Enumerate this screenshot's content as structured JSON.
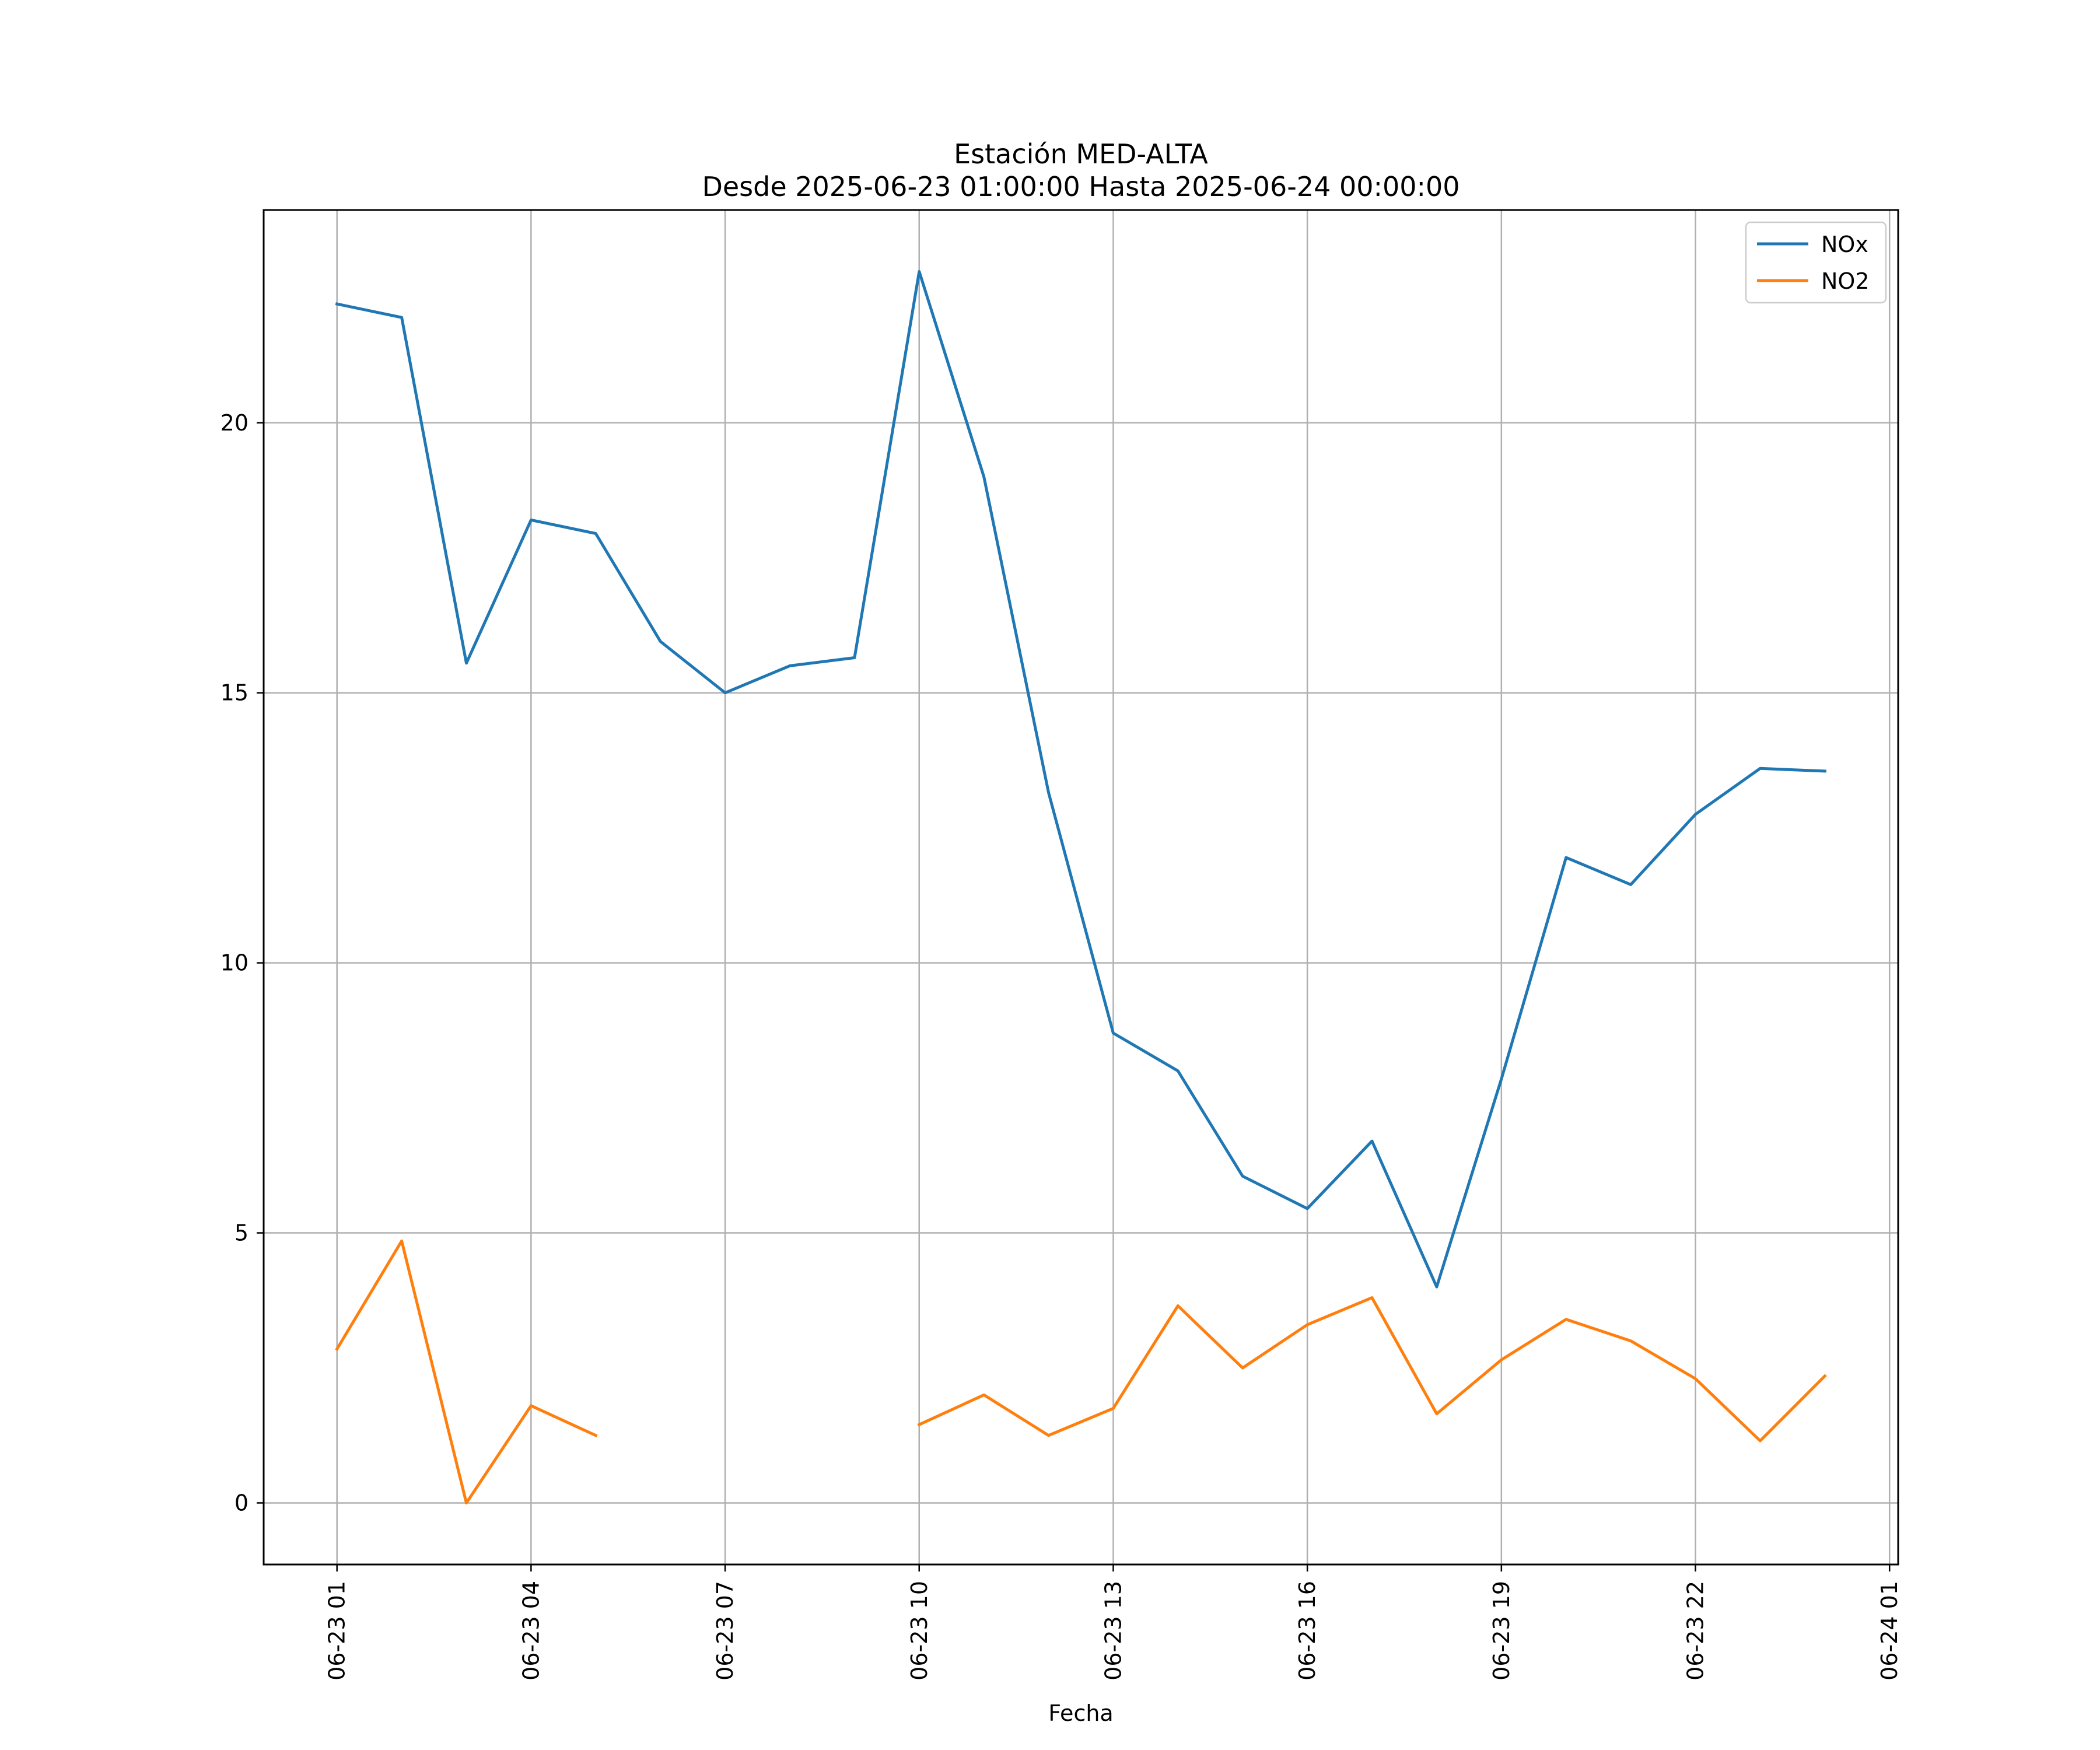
{
  "chart_data": {
    "type": "line",
    "title": "Estación MED-ALTA",
    "subtitle": "Desde 2025-06-23 01:00:00 Hasta 2025-06-24 00:00:00",
    "xlabel": "Fecha",
    "ylabel": "",
    "x": [
      "2025-06-23 01:00",
      "2025-06-23 02:00",
      "2025-06-23 03:00",
      "2025-06-23 04:00",
      "2025-06-23 05:00",
      "2025-06-23 06:00",
      "2025-06-23 07:00",
      "2025-06-23 08:00",
      "2025-06-23 09:00",
      "2025-06-23 10:00",
      "2025-06-23 11:00",
      "2025-06-23 12:00",
      "2025-06-23 13:00",
      "2025-06-23 14:00",
      "2025-06-23 15:00",
      "2025-06-23 16:00",
      "2025-06-23 17:00",
      "2025-06-23 18:00",
      "2025-06-23 19:00",
      "2025-06-23 20:00",
      "2025-06-23 21:00",
      "2025-06-23 22:00",
      "2025-06-23 23:00",
      "2025-06-24 00:00"
    ],
    "series": [
      {
        "name": "NOx",
        "color": "#1f77b4",
        "values": [
          22.2,
          21.95,
          15.55,
          18.2,
          17.95,
          15.95,
          15.0,
          15.5,
          15.65,
          22.8,
          19.0,
          13.15,
          8.7,
          8.0,
          6.05,
          5.45,
          6.7,
          4.0,
          7.85,
          11.95,
          11.45,
          12.75,
          13.6,
          13.55
        ]
      },
      {
        "name": "NO2",
        "color": "#ff7f0e",
        "values": [
          2.85,
          4.85,
          0.0,
          1.8,
          1.25,
          null,
          null,
          null,
          null,
          1.45,
          2.0,
          1.25,
          1.75,
          3.65,
          2.5,
          3.3,
          3.8,
          1.65,
          2.65,
          3.4,
          3.0,
          2.3,
          1.15,
          2.35
        ]
      }
    ],
    "xlim": [
      "2025-06-22 23:52",
      "2025-06-24 01:08"
    ],
    "ylim": [
      -1.14,
      23.94
    ],
    "yticks": [
      0,
      5,
      10,
      15,
      20
    ],
    "ytick_labels": [
      "0",
      "5",
      "10",
      "15",
      "20"
    ],
    "xticks": [
      "2025-06-23 01:00",
      "2025-06-23 04:00",
      "2025-06-23 07:00",
      "2025-06-23 10:00",
      "2025-06-23 13:00",
      "2025-06-23 16:00",
      "2025-06-23 19:00",
      "2025-06-23 22:00",
      "2025-06-24 01:00"
    ],
    "xtick_labels": [
      "06-23 01",
      "06-23 04",
      "06-23 07",
      "06-23 10",
      "06-23 13",
      "06-23 16",
      "06-23 19",
      "06-23 22",
      "06-24 01"
    ],
    "grid": true,
    "legend": "top-right"
  }
}
